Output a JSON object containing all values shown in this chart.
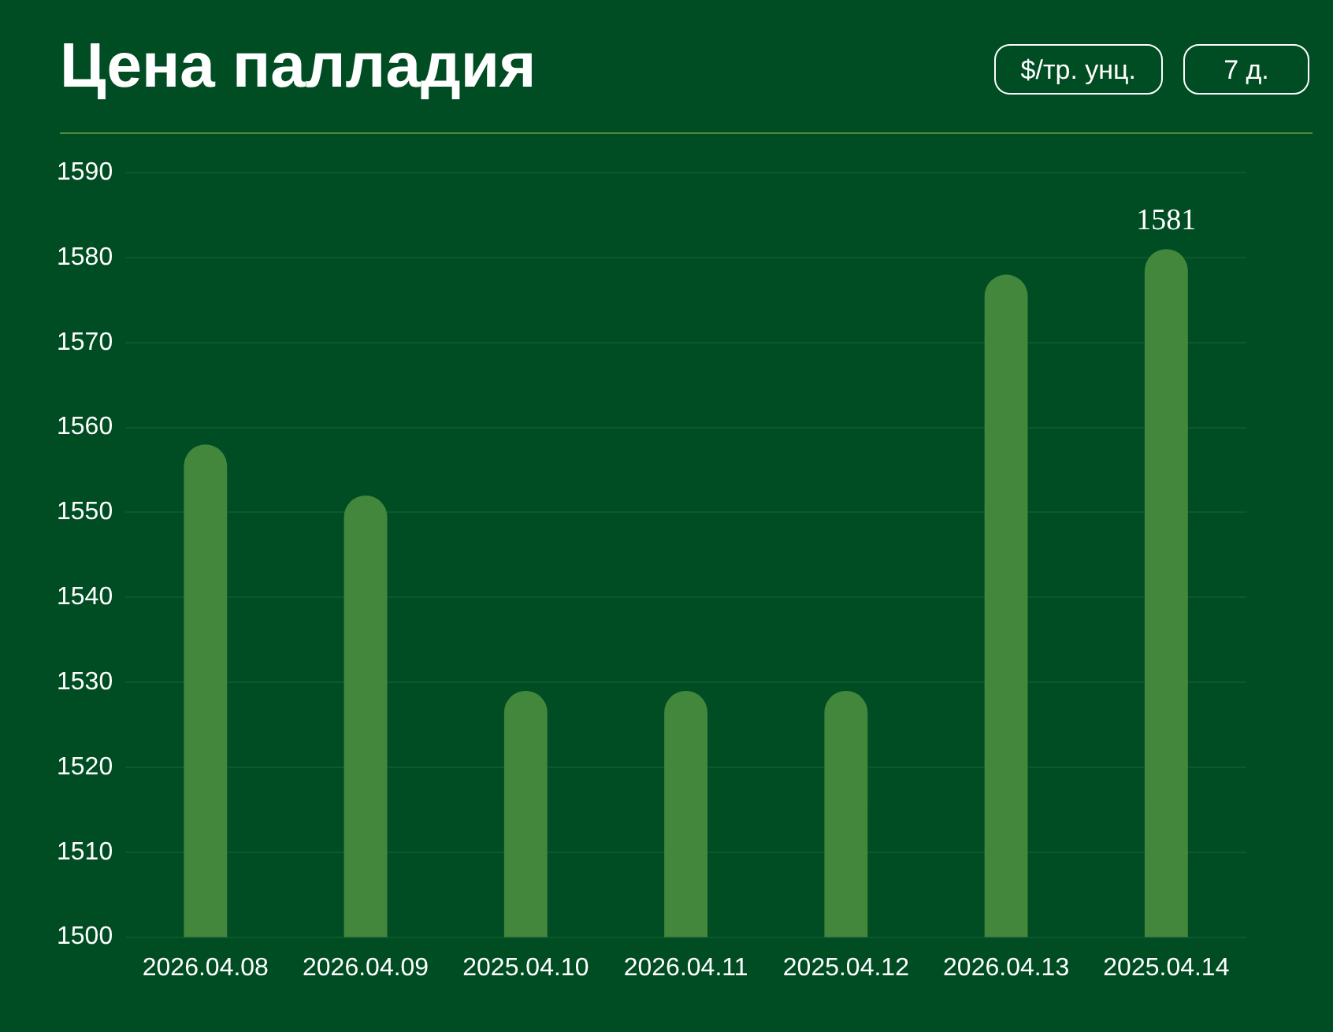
{
  "chart_data": {
    "type": "bar",
    "title": "Цена палладия",
    "annotations": [
      "$/тр. унц.",
      "7 д."
    ],
    "categories": [
      "2026.04.08",
      "2026.04.09",
      "2025.04.10",
      "2026.04.11",
      "2025.04.12",
      "2026.04.13",
      "2025.04.14"
    ],
    "values": [
      1558,
      1552,
      1529,
      1529,
      1529,
      1578,
      1581
    ],
    "value_labels": [
      null,
      null,
      null,
      null,
      null,
      null,
      "1581"
    ],
    "color": "#43873d",
    "ylim": [
      1500,
      1590
    ],
    "yticks": [
      1500,
      1510,
      1520,
      1530,
      1540,
      1550,
      1560,
      1570,
      1580,
      1590
    ],
    "grid": "y",
    "legend": false
  }
}
